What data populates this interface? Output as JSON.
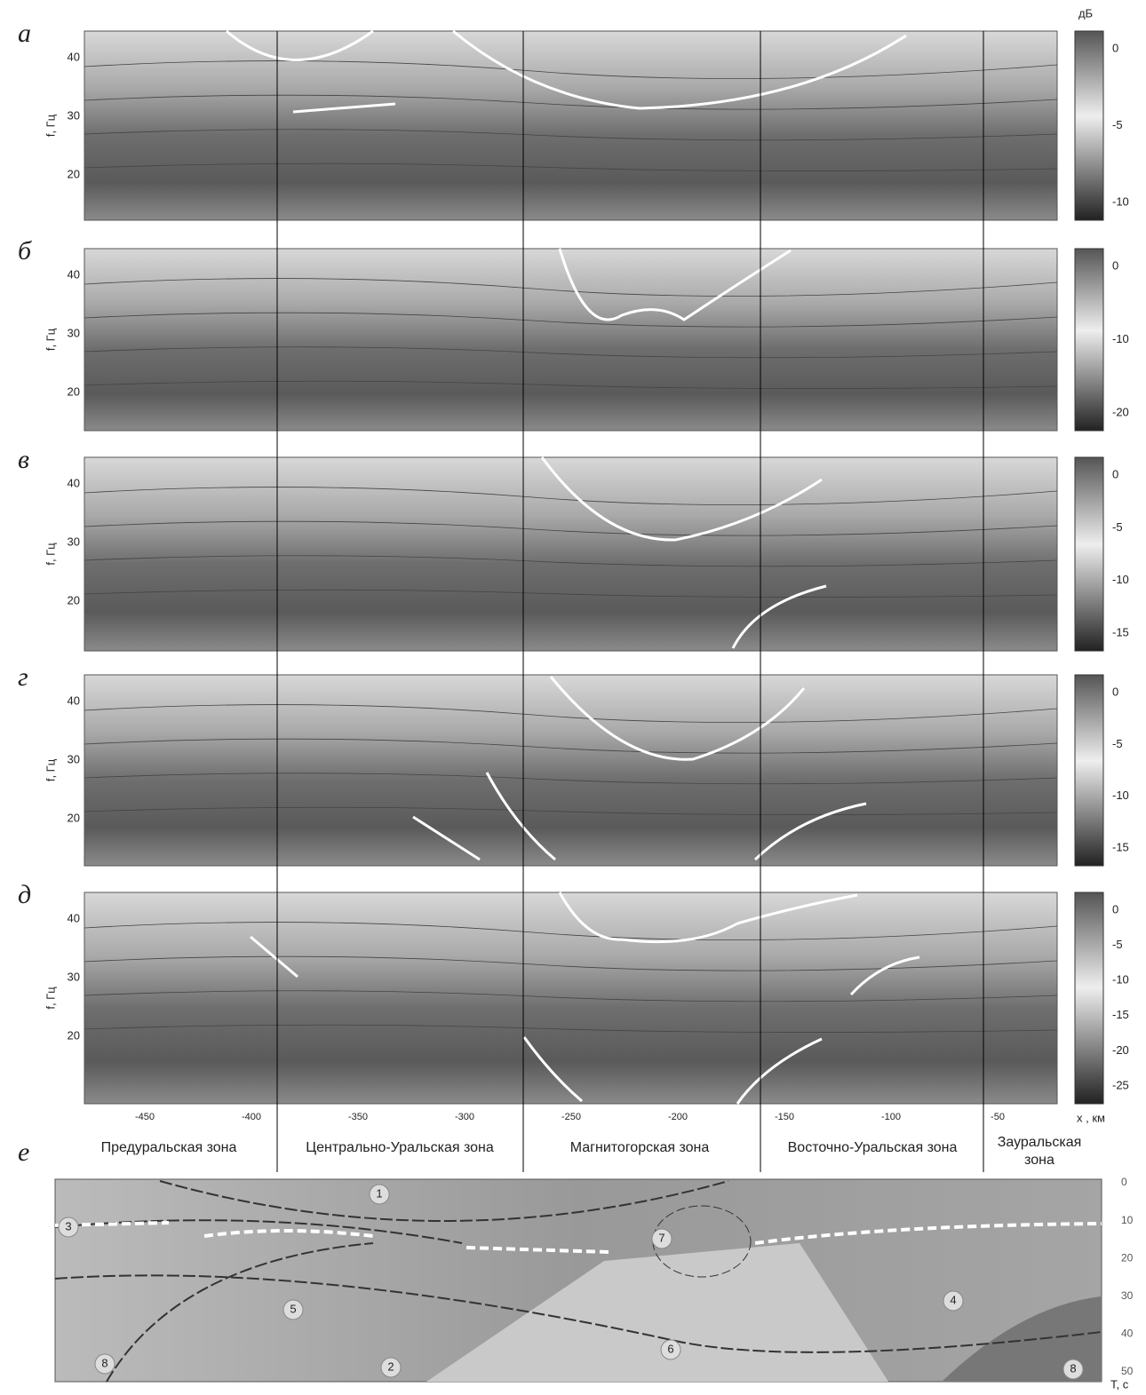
{
  "colorbar_unit": "дБ",
  "y_axis_label": "f, Гц",
  "panels": [
    {
      "label": "а",
      "yticks": [
        40,
        30,
        20
      ],
      "colorbar_ticks": [
        0,
        -5,
        -10
      ]
    },
    {
      "label": "б",
      "yticks": [
        40,
        30,
        20
      ],
      "colorbar_ticks": [
        0,
        -10,
        -20
      ]
    },
    {
      "label": "в",
      "yticks": [
        40,
        30,
        20
      ],
      "colorbar_ticks": [
        0,
        -5,
        -10,
        -15
      ]
    },
    {
      "label": "г",
      "yticks": [
        40,
        30,
        20
      ],
      "colorbar_ticks": [
        0,
        -5,
        -10,
        -15
      ]
    },
    {
      "label": "д",
      "yticks": [
        40,
        30,
        20
      ],
      "colorbar_ticks": [
        0,
        -5,
        -10,
        -15,
        -20,
        -25
      ]
    }
  ],
  "x_axis": {
    "ticks": [
      -450,
      -400,
      -350,
      -300,
      -250,
      -200,
      -150,
      -100,
      -50
    ],
    "label": "x , км"
  },
  "zones": [
    "Предуральская зона",
    "Центрально-Уральская зона",
    "Магнитогорская зона",
    "Восточно-Уральская зона",
    "Зауральская зона"
  ],
  "section": {
    "label": "е",
    "depth_ticks": [
      0,
      10,
      20,
      30,
      40,
      50
    ],
    "depth_label": "Т, с",
    "markers": [
      "1",
      "3",
      "5",
      "7",
      "4",
      "2",
      "6",
      "8",
      "8"
    ]
  }
}
